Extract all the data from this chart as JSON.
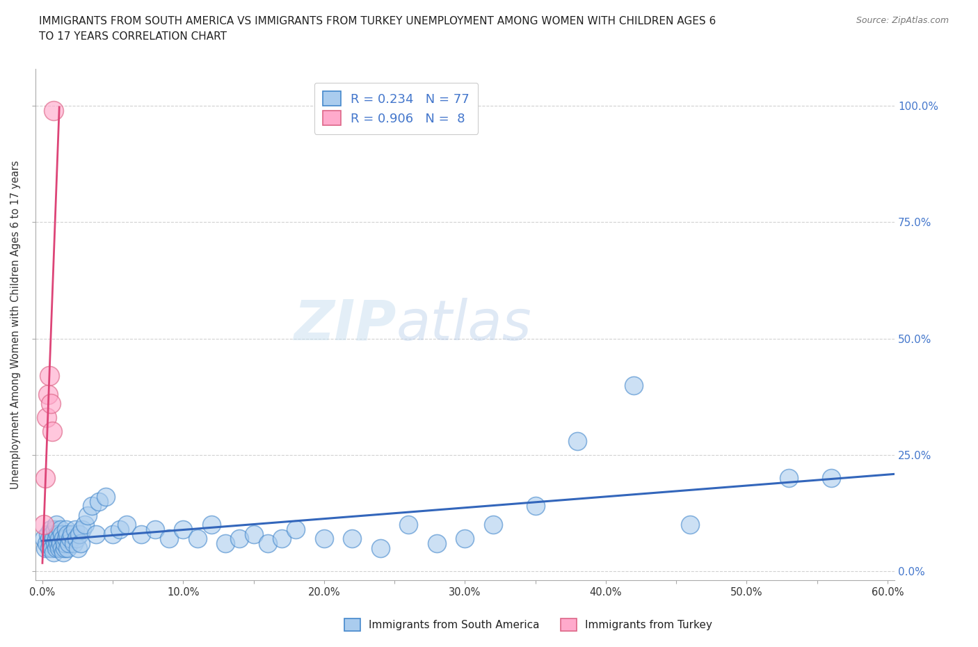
{
  "title_line1": "IMMIGRANTS FROM SOUTH AMERICA VS IMMIGRANTS FROM TURKEY UNEMPLOYMENT AMONG WOMEN WITH CHILDREN AGES 6",
  "title_line2": "TO 17 YEARS CORRELATION CHART",
  "source_text": "Source: ZipAtlas.com",
  "ylabel": "Unemployment Among Women with Children Ages 6 to 17 years",
  "xlabel_ticks": [
    "0.0%",
    "",
    "10.0%",
    "",
    "20.0%",
    "",
    "30.0%",
    "",
    "40.0%",
    "",
    "50.0%",
    "",
    "60.0%"
  ],
  "xlabel_vals": [
    0.0,
    0.05,
    0.1,
    0.15,
    0.2,
    0.25,
    0.3,
    0.35,
    0.4,
    0.45,
    0.5,
    0.55,
    0.6
  ],
  "ylabel_ticks_right": [
    "100.0%",
    "75.0%",
    "50.0%",
    "25.0%"
  ],
  "ylabel_vals": [
    0.0,
    0.25,
    0.5,
    0.75,
    1.0
  ],
  "xlim": [
    -0.005,
    0.605
  ],
  "ylim": [
    -0.02,
    1.08
  ],
  "south_america_color": "#aaccee",
  "south_america_edge": "#4488cc",
  "turkey_color": "#ffaacc",
  "turkey_edge": "#dd6688",
  "regression_south_america_color": "#3366bb",
  "regression_turkey_color": "#dd4477",
  "legend_R_south": "0.234",
  "legend_N_south": "77",
  "legend_R_turkey": "0.906",
  "legend_N_turkey": "8",
  "south_america_x": [
    0.001,
    0.002,
    0.003,
    0.004,
    0.005,
    0.005,
    0.006,
    0.006,
    0.007,
    0.007,
    0.008,
    0.008,
    0.009,
    0.009,
    0.01,
    0.01,
    0.01,
    0.011,
    0.011,
    0.012,
    0.012,
    0.013,
    0.013,
    0.014,
    0.014,
    0.015,
    0.015,
    0.016,
    0.016,
    0.017,
    0.017,
    0.018,
    0.018,
    0.019,
    0.02,
    0.021,
    0.022,
    0.023,
    0.024,
    0.025,
    0.026,
    0.027,
    0.028,
    0.03,
    0.032,
    0.035,
    0.038,
    0.04,
    0.045,
    0.05,
    0.055,
    0.06,
    0.07,
    0.08,
    0.09,
    0.1,
    0.11,
    0.12,
    0.13,
    0.14,
    0.15,
    0.16,
    0.17,
    0.18,
    0.2,
    0.22,
    0.24,
    0.26,
    0.28,
    0.3,
    0.32,
    0.35,
    0.38,
    0.42,
    0.46,
    0.53,
    0.56
  ],
  "south_america_y": [
    0.07,
    0.05,
    0.06,
    0.08,
    0.05,
    0.07,
    0.06,
    0.09,
    0.05,
    0.08,
    0.04,
    0.07,
    0.06,
    0.09,
    0.05,
    0.07,
    0.1,
    0.06,
    0.08,
    0.05,
    0.07,
    0.06,
    0.09,
    0.05,
    0.08,
    0.04,
    0.07,
    0.05,
    0.06,
    0.07,
    0.09,
    0.05,
    0.08,
    0.06,
    0.07,
    0.08,
    0.06,
    0.09,
    0.07,
    0.05,
    0.08,
    0.06,
    0.09,
    0.1,
    0.12,
    0.14,
    0.08,
    0.15,
    0.16,
    0.08,
    0.09,
    0.1,
    0.08,
    0.09,
    0.07,
    0.09,
    0.07,
    0.1,
    0.06,
    0.07,
    0.08,
    0.06,
    0.07,
    0.09,
    0.07,
    0.07,
    0.05,
    0.1,
    0.06,
    0.07,
    0.1,
    0.14,
    0.28,
    0.4,
    0.1,
    0.2,
    0.2
  ],
  "turkey_x": [
    0.001,
    0.002,
    0.003,
    0.004,
    0.005,
    0.006,
    0.007,
    0.008
  ],
  "turkey_y": [
    0.1,
    0.2,
    0.33,
    0.38,
    0.42,
    0.36,
    0.3,
    0.99
  ],
  "watermark_zip": "ZIP",
  "watermark_atlas": "atlas",
  "background_color": "#ffffff",
  "grid_color": "#cccccc",
  "axis_label_color": "#4477cc",
  "tick_label_color": "#4477cc"
}
